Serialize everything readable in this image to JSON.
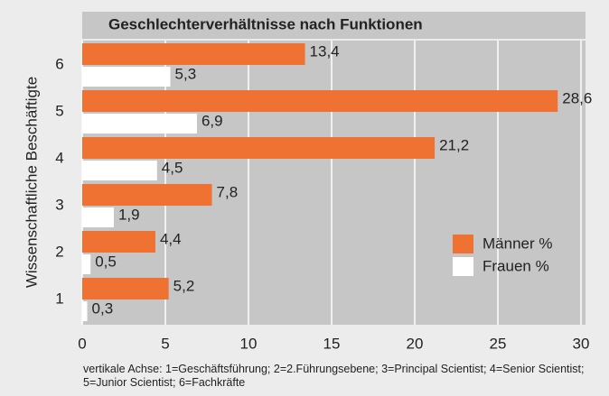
{
  "chart_data": {
    "type": "barh",
    "title": "Geschlechterverhältnisse nach Funktionen",
    "ylabel": "Wissenschaftliche Beschäftigte",
    "categories": [
      "1",
      "2",
      "3",
      "4",
      "5",
      "6"
    ],
    "series": [
      {
        "name": "Männer %",
        "color": "#f07232",
        "values": [
          5.2,
          4.4,
          7.8,
          21.2,
          28.6,
          13.4
        ],
        "value_labels": [
          "5,2",
          "4,4",
          "7,8",
          "21,2",
          "28,6",
          "13,4"
        ]
      },
      {
        "name": "Frauen %",
        "color": "#ffffff",
        "values": [
          0.3,
          0.5,
          1.9,
          4.5,
          6.9,
          5.3
        ],
        "value_labels": [
          "0,3",
          "0,5",
          "1,9",
          "4,5",
          "6,9",
          "5,3"
        ]
      }
    ],
    "xlim": [
      0,
      30
    ],
    "xticks": [
      0,
      5,
      10,
      15,
      20,
      25,
      30
    ],
    "grid": true,
    "legend": "lower right",
    "note": "vertikale  Achse: 1=Geschäftsführung; 2=2.Führungsebene; 3=Principal Scientist; 4=Senior Scientist; 5=Junior Scientist; 6=Fachkräfte"
  }
}
